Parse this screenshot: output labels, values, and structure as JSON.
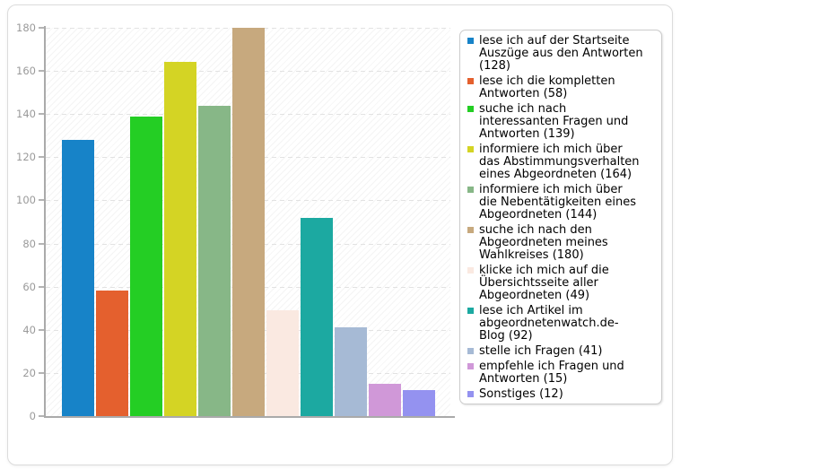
{
  "chart_data": {
    "type": "bar",
    "title": "",
    "xlabel": "",
    "ylabel": "",
    "categories": [
      "lese ich auf der Startseite Auszüge aus den Antworten (128)",
      "lese ich die kompletten Antworten (58)",
      "suche ich nach interessanten Fragen und Antworten (139)",
      "informiere ich mich über das Abstimmungsverhalten eines Abgeordneten (164)",
      "informiere ich mich über die Nebentätigkeiten eines Abgeordneten (144)",
      "suche ich nach den Abgeordneten meines Wahlkreises (180)",
      "klicke ich mich auf die Übersichtsseite aller Abgeordneten (49)",
      "lese ich Artikel im abgeordnetenwatch.de-Blog (92)",
      "stelle ich Fragen (41)",
      "empfehle ich Fragen und Antworten (15)",
      "Sonstiges (12)"
    ],
    "values": [
      128,
      58,
      139,
      164,
      144,
      180,
      49,
      92,
      41,
      15,
      12
    ],
    "colors": [
      "#1783c8",
      "#e4602e",
      "#24ce24",
      "#d4d424",
      "#87b787",
      "#c7a97e",
      "#fae9e1",
      "#1ca9a1",
      "#a6bad5",
      "#d098d8",
      "#9492f0"
    ],
    "ylim": [
      0,
      180
    ],
    "ytick_step": 20,
    "ytick_labels": [
      "0",
      "20",
      "40",
      "60",
      "80",
      "100",
      "120",
      "140",
      "160",
      "180"
    ],
    "grid": "horizontal-dashed",
    "plot_background": "diagonal-hatch",
    "legend_position": "right"
  },
  "style": {
    "axis_color": "#aaaaaa",
    "grid_color": "#e2e2e2",
    "tick_label_color": "#9a9a9a",
    "panel_border": "#dcdcdc",
    "legend_border": "#cccccc",
    "background": "#ffffff"
  }
}
